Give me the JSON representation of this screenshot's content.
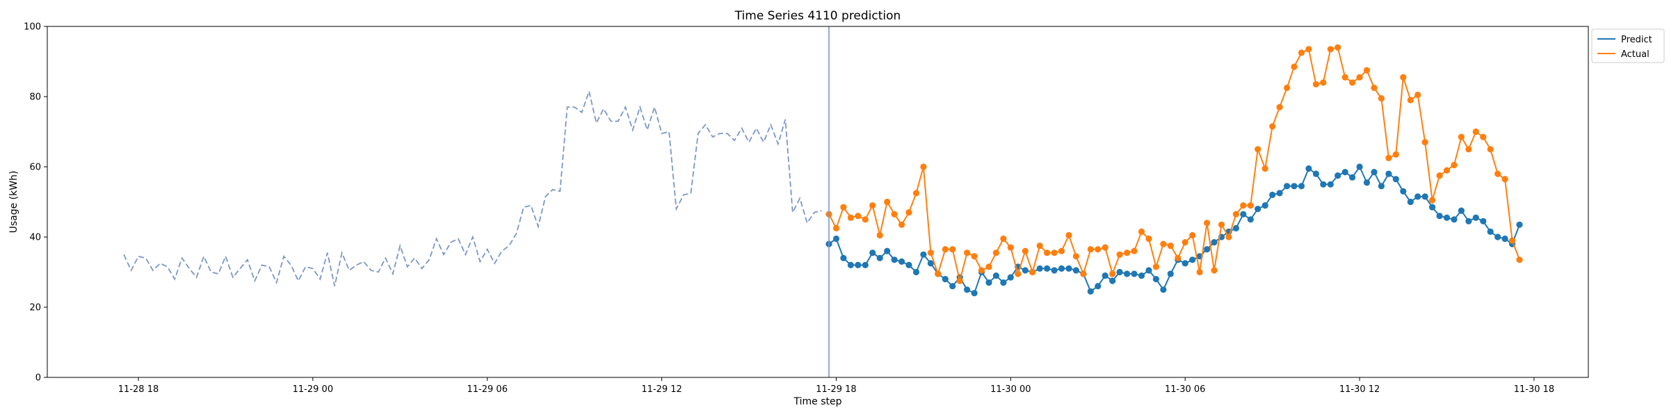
{
  "chart_data": {
    "type": "line",
    "title": "Time Series 4110 prediction",
    "xlabel": "Time step",
    "ylabel": "Usage (kWh)",
    "ylim": [
      0,
      100
    ],
    "xlim": [
      "2023-11-28 14:52",
      "2023-11-30 19:52"
    ],
    "yticks": [
      0,
      20,
      40,
      60,
      80,
      100
    ],
    "xticks": [
      {
        "t": "2023-11-28 18:00",
        "label": "11-28 18"
      },
      {
        "t": "2023-11-29 00:00",
        "label": "11-29 00"
      },
      {
        "t": "2023-11-29 06:00",
        "label": "11-29 06"
      },
      {
        "t": "2023-11-29 12:00",
        "label": "11-29 12"
      },
      {
        "t": "2023-11-29 18:00",
        "label": "11-29 18"
      },
      {
        "t": "2023-11-30 00:00",
        "label": "11-30 00"
      },
      {
        "t": "2023-11-30 06:00",
        "label": "11-30 06"
      },
      {
        "t": "2023-11-30 12:00",
        "label": "11-30 12"
      },
      {
        "t": "2023-11-30 18:00",
        "label": "11-30 18"
      }
    ],
    "grid": false,
    "legend_position": "top-right",
    "forecast_start": "2023-11-29 17:45",
    "interval_minutes": 15,
    "history": {
      "start": "2023-11-28 17:30",
      "color": "#7a96c8",
      "style": "dashed",
      "values": [
        35.0,
        30.5,
        34.5,
        34.0,
        30.5,
        32.5,
        31.5,
        28.0,
        34.0,
        31.0,
        28.5,
        34.5,
        30.0,
        29.5,
        34.5,
        28.5,
        31.0,
        33.5,
        27.5,
        32.0,
        31.5,
        27.0,
        34.5,
        32.0,
        27.5,
        31.5,
        31.0,
        28.0,
        35.5,
        26.0,
        35.5,
        30.5,
        32.0,
        33.0,
        30.5,
        30.0,
        34.0,
        29.5,
        37.5,
        31.5,
        34.0,
        31.0,
        33.5,
        39.5,
        35.0,
        38.5,
        39.5,
        35.0,
        40.0,
        33.0,
        36.5,
        32.5,
        36.0,
        37.5,
        41.0,
        48.5,
        49.0,
        43.0,
        51.5,
        53.5,
        53.0,
        77.0,
        77.0,
        75.5,
        81.5,
        72.5,
        76.5,
        73.0,
        73.0,
        77.0,
        70.5,
        77.0,
        70.5,
        77.0,
        69.5,
        70.0,
        48.0,
        52.0,
        52.5,
        69.5,
        72.0,
        68.5,
        69.5,
        69.5,
        67.5,
        71.0,
        67.0,
        71.0,
        67.0,
        72.0,
        66.5,
        73.5,
        47.0,
        51.0,
        44.0,
        47.0,
        47.5
      ]
    },
    "series": [
      {
        "name": "Predict",
        "color": "#1f77b4",
        "start": "2023-11-29 17:45",
        "values": [
          38.0,
          39.5,
          34.0,
          32.0,
          32.0,
          32.0,
          35.5,
          34.0,
          36.0,
          33.5,
          33.0,
          32.0,
          30.0,
          35.0,
          32.5,
          29.5,
          28.0,
          26.0,
          28.5,
          25.0,
          24.0,
          30.0,
          27.0,
          29.0,
          27.0,
          28.5,
          31.5,
          30.5,
          30.0,
          31.0,
          31.0,
          30.5,
          31.0,
          31.0,
          30.5,
          29.5,
          24.5,
          26.0,
          29.0,
          27.5,
          30.0,
          29.5,
          29.5,
          29.0,
          30.5,
          28.0,
          25.0,
          29.5,
          33.5,
          32.5,
          33.5,
          34.5,
          36.5,
          38.5,
          40.0,
          41.5,
          42.5,
          46.5,
          45.0,
          48.0,
          49.0,
          52.0,
          52.5,
          54.5,
          54.5,
          54.5,
          59.5,
          58.0,
          55.0,
          55.0,
          57.5,
          58.5,
          57.0,
          60.0,
          55.5,
          58.5,
          54.5,
          58.0,
          56.5,
          53.0,
          50.0,
          51.5,
          51.5,
          48.5,
          46.0,
          45.5,
          45.0,
          47.5,
          44.5,
          45.5,
          44.5,
          41.5,
          40.0,
          39.5,
          38.0,
          43.5
        ]
      },
      {
        "name": "Actual",
        "color": "#ff7f0e",
        "start": "2023-11-29 17:45",
        "values": [
          46.5,
          42.5,
          48.5,
          45.5,
          46.0,
          45.0,
          49.0,
          40.5,
          50.0,
          46.5,
          43.5,
          47.0,
          52.5,
          60.0,
          35.5,
          29.5,
          36.5,
          36.5,
          27.5,
          35.5,
          34.5,
          30.5,
          31.5,
          35.5,
          39.5,
          37.0,
          29.5,
          36.0,
          30.0,
          37.5,
          35.5,
          35.5,
          36.0,
          40.5,
          34.5,
          29.5,
          36.5,
          36.5,
          37.0,
          29.5,
          35.0,
          35.5,
          36.0,
          41.5,
          39.5,
          31.5,
          38.0,
          37.5,
          34.0,
          38.5,
          40.5,
          30.0,
          44.0,
          30.5,
          43.5,
          40.0,
          46.5,
          49.0,
          49.0,
          65.0,
          59.5,
          71.5,
          77.0,
          82.5,
          88.5,
          92.5,
          93.5,
          83.5,
          84.0,
          93.5,
          94.0,
          85.5,
          84.0,
          85.5,
          87.5,
          82.5,
          79.5,
          62.5,
          63.5,
          85.5,
          79.0,
          80.5,
          67.0,
          50.5,
          57.5,
          59.0,
          60.5,
          68.5,
          65.0,
          70.0,
          68.5,
          65.0,
          58.0,
          56.5,
          39.0,
          33.5
        ]
      }
    ]
  }
}
